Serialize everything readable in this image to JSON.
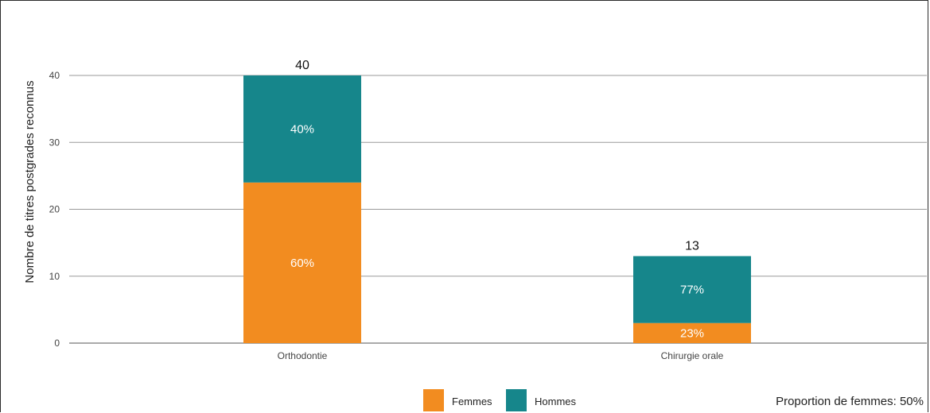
{
  "chart_data": {
    "type": "bar",
    "stacked": true,
    "categories": [
      "Orthodontie",
      "Chirurgie orale"
    ],
    "series": [
      {
        "name": "Femmes",
        "color": "#f28c20",
        "values": [
          24,
          3
        ],
        "labels": [
          "60%",
          "23%"
        ]
      },
      {
        "name": "Hommes",
        "color": "#16868b",
        "values": [
          16,
          10
        ],
        "labels": [
          "40%",
          "77%"
        ]
      }
    ],
    "totals": [
      40,
      13
    ],
    "ylabel": "Nombre de titres postgrades reconnus",
    "xlabel": "",
    "ylim": [
      0,
      40
    ],
    "yticks": [
      0,
      10,
      20,
      30,
      40
    ],
    "grid": true,
    "legend_position": "bottom-center",
    "footer_note": "Proportion de femmes: 50%"
  }
}
